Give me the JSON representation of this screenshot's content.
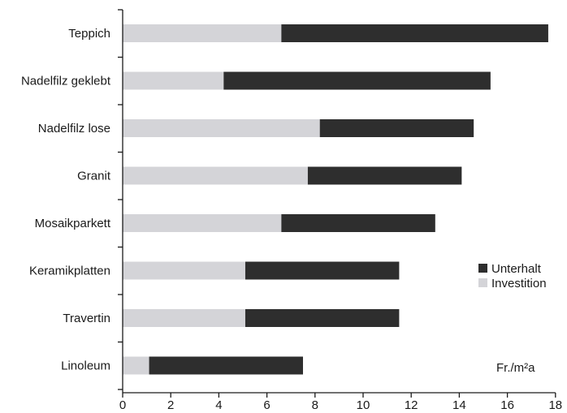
{
  "chart_data": {
    "type": "bar",
    "orientation": "horizontal",
    "stacked": true,
    "categories": [
      "Teppich",
      "Nadelfilz geklebt",
      "Nadelfilz lose",
      "Granit",
      "Mosaikparkett",
      "Keramikplatten",
      "Travertin",
      "Linoleum"
    ],
    "series": [
      {
        "name": "Investition",
        "color": "#d4d4d8",
        "values": [
          6.6,
          4.2,
          8.2,
          7.7,
          6.6,
          5.1,
          5.1,
          1.1
        ]
      },
      {
        "name": "Unterhalt",
        "color": "#2e2e2e",
        "values": [
          11.1,
          11.1,
          6.4,
          6.4,
          6.4,
          6.4,
          6.4,
          6.4
        ]
      }
    ],
    "xlim": [
      0,
      18
    ],
    "xticks": [
      "0",
      "2",
      "4",
      "6",
      "8",
      "10",
      "12",
      "14",
      "16",
      "18"
    ],
    "unit_label": "Fr./m²a",
    "legend": {
      "position": "right",
      "entries": [
        "Unterhalt",
        "Investition"
      ]
    }
  }
}
